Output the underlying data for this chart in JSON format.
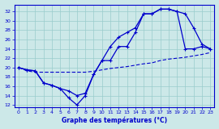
{
  "xlabel": "Graphe des températures (°C)",
  "bg_color": "#cce8e8",
  "grid_color": "#99cccc",
  "line_color": "#0000cc",
  "xlim": [
    -0.5,
    23.5
  ],
  "ylim": [
    11.5,
    33.5
  ],
  "yticks": [
    12,
    14,
    16,
    18,
    20,
    22,
    24,
    26,
    28,
    30,
    32
  ],
  "xticks": [
    0,
    1,
    2,
    3,
    4,
    5,
    6,
    7,
    8,
    9,
    10,
    11,
    12,
    13,
    14,
    15,
    16,
    17,
    18,
    19,
    20,
    21,
    22,
    23
  ],
  "s1_x": [
    0,
    1,
    2,
    3,
    4,
    5,
    6,
    7,
    8,
    9,
    10,
    11,
    12,
    13,
    14,
    15,
    16,
    17,
    18,
    19,
    20,
    21,
    22,
    23
  ],
  "s1_y": [
    20.0,
    19.5,
    19.3,
    16.7,
    16.2,
    15.5,
    15.0,
    14.0,
    14.5,
    18.5,
    21.5,
    24.5,
    26.5,
    27.5,
    28.5,
    31.5,
    31.5,
    32.5,
    32.5,
    32.0,
    31.5,
    28.5,
    25.0,
    24.0
  ],
  "s2_x": [
    0,
    1,
    2,
    3,
    4,
    5,
    6,
    7,
    8,
    9,
    10,
    11,
    12,
    13,
    14,
    15,
    16,
    17,
    18,
    19,
    20,
    21,
    22,
    23
  ],
  "s2_y": [
    20.0,
    19.5,
    19.3,
    16.7,
    16.2,
    15.5,
    13.5,
    12.0,
    14.0,
    18.5,
    21.5,
    21.5,
    24.5,
    24.5,
    27.5,
    31.5,
    31.5,
    32.5,
    32.5,
    32.0,
    24.0,
    24.0,
    24.5,
    24.0
  ],
  "s3_x": [
    0,
    1,
    2,
    3,
    4,
    5,
    6,
    7,
    8,
    9,
    10,
    11,
    12,
    13,
    14,
    15,
    16,
    17,
    18,
    19,
    20,
    21,
    22,
    23
  ],
  "s3_y": [
    20.0,
    19.3,
    19.0,
    19.0,
    19.0,
    19.0,
    19.0,
    19.0,
    19.0,
    19.2,
    19.5,
    19.8,
    20.0,
    20.2,
    20.5,
    20.8,
    21.0,
    21.5,
    21.8,
    22.0,
    22.2,
    22.5,
    22.8,
    23.2
  ]
}
